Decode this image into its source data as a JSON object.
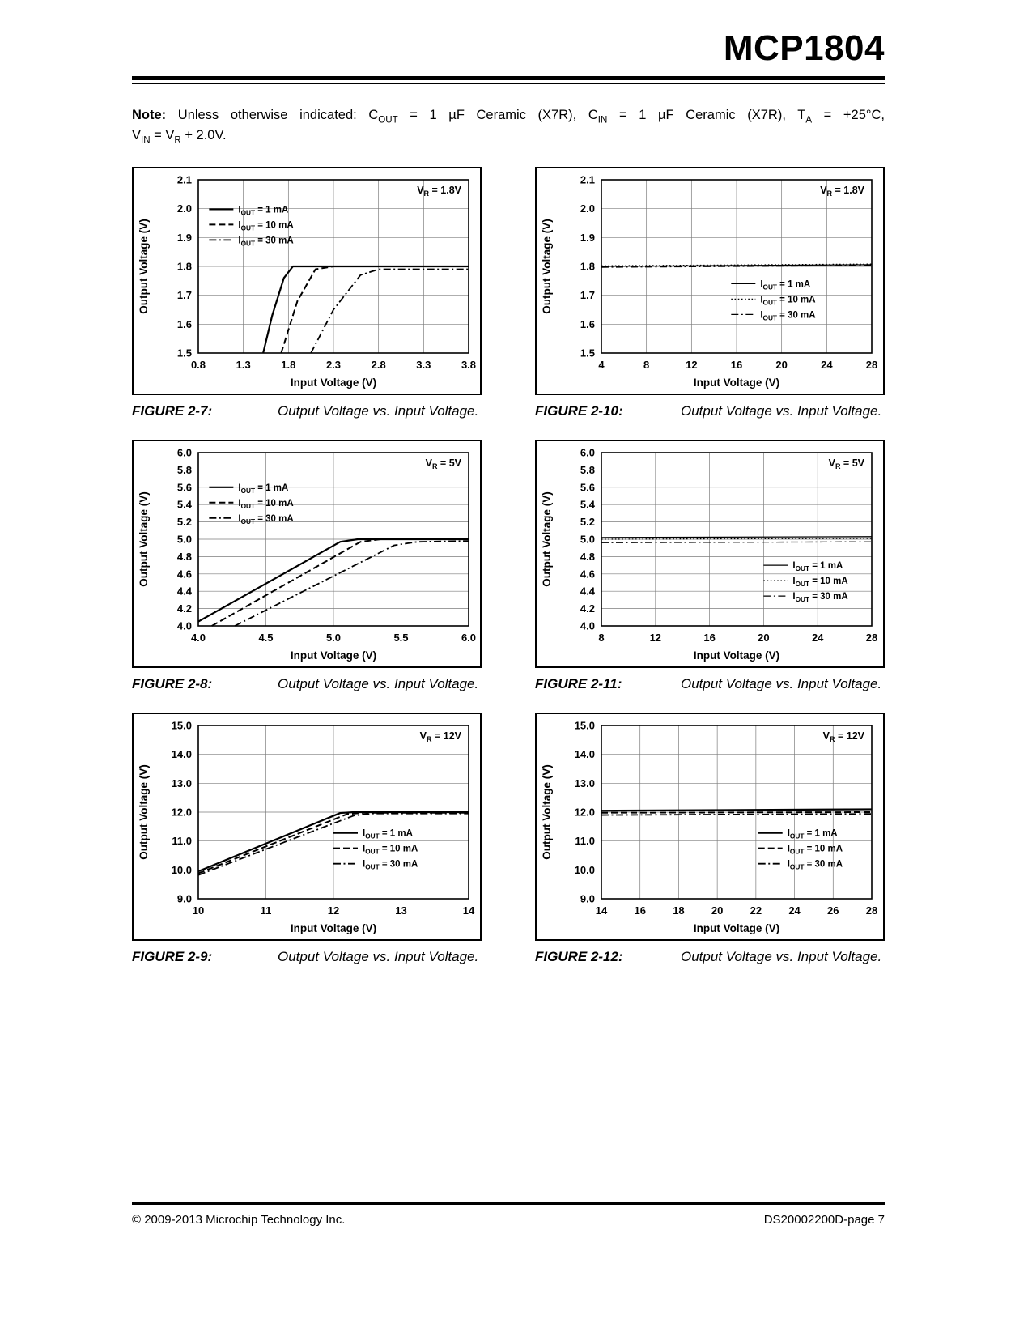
{
  "page": {
    "title": "MCP1804",
    "note": {
      "label": "Note:",
      "line1": "Unless otherwise indicated: C~OUT~ = 1 µF Ceramic (X7R), C~IN~ = 1 µF Ceramic (X7R), T~A~ = +25°C,",
      "line2": "V~IN~ = V~R~ + 2.0V."
    },
    "footer": {
      "left": "© 2009-2013 Microchip Technology Inc.",
      "right": "DS20002200D-page 7"
    }
  },
  "figures": [
    {
      "label": "FIGURE 2-7:",
      "caption": "Output Voltage vs. Input Voltage."
    },
    {
      "label": "FIGURE 2-10:",
      "caption": "Output Voltage vs. Input Voltage."
    },
    {
      "label": "FIGURE 2-8:",
      "caption": "Output Voltage vs. Input Voltage."
    },
    {
      "label": "FIGURE 2-11:",
      "caption": "Output Voltage vs. Input Voltage."
    },
    {
      "label": "FIGURE 2-9:",
      "caption": "Output Voltage vs. Input Voltage."
    },
    {
      "label": "FIGURE 2-12:",
      "caption": "Output Voltage vs. Input Voltage."
    }
  ],
  "chart_data": [
    {
      "figure": "2-7",
      "type": "line",
      "annotation": "V~R~ = 1.8V",
      "xlabel": "Input Voltage (V)",
      "ylabel": "Output Voltage (V)",
      "xlim": [
        0.8,
        3.8
      ],
      "ylim": [
        1.5,
        2.1
      ],
      "xticks": [
        0.8,
        1.3,
        1.8,
        2.3,
        2.8,
        3.3,
        3.8
      ],
      "xtick_labels": [
        "0.8",
        "1.3",
        "1.8",
        "2.3",
        "2.8",
        "3.3",
        "3.8"
      ],
      "yticks": [
        1.5,
        1.6,
        1.7,
        1.8,
        1.9,
        2.0,
        2.1
      ],
      "ytick_labels": [
        "1.5",
        "1.6",
        "1.7",
        "1.8",
        "1.9",
        "2.0",
        "2.1"
      ],
      "grid": true,
      "legend": {
        "x": 0.04,
        "y": 0.17
      },
      "series": [
        {
          "name": "I~OUT~ = 1 mA",
          "dash": "solid",
          "width": 2.2,
          "points": [
            [
              1.52,
              1.5
            ],
            [
              1.62,
              1.63
            ],
            [
              1.75,
              1.76
            ],
            [
              1.85,
              1.8
            ],
            [
              3.8,
              1.8
            ]
          ]
        },
        {
          "name": "I~OUT~ = 10 mA",
          "dash": "dashed",
          "width": 2.0,
          "points": [
            [
              1.72,
              1.5
            ],
            [
              1.9,
              1.68
            ],
            [
              2.1,
              1.79
            ],
            [
              2.3,
              1.8
            ],
            [
              3.8,
              1.8
            ]
          ]
        },
        {
          "name": "I~OUT~ = 30 mA",
          "dash": "dashdot",
          "width": 1.8,
          "points": [
            [
              2.05,
              1.5
            ],
            [
              2.3,
              1.65
            ],
            [
              2.6,
              1.77
            ],
            [
              2.8,
              1.79
            ],
            [
              3.8,
              1.79
            ]
          ]
        }
      ]
    },
    {
      "figure": "2-10",
      "type": "line",
      "annotation": "V~R~ = 1.8V",
      "xlabel": "Input Voltage (V)",
      "ylabel": "Output Voltage (V)",
      "xlim": [
        4,
        28
      ],
      "ylim": [
        1.5,
        2.1
      ],
      "xticks": [
        4,
        8,
        12,
        16,
        20,
        24,
        28
      ],
      "xtick_labels": [
        "4",
        "8",
        "12",
        "16",
        "20",
        "24",
        "28"
      ],
      "yticks": [
        1.5,
        1.6,
        1.7,
        1.8,
        1.9,
        2.0,
        2.1
      ],
      "ytick_labels": [
        "1.5",
        "1.6",
        "1.7",
        "1.8",
        "1.9",
        "2.0",
        "2.1"
      ],
      "grid": true,
      "legend": {
        "x": 0.48,
        "y": 0.6
      },
      "series": [
        {
          "name": "I~OUT~ = 1 mA",
          "dash": "solid",
          "width": 1.3,
          "points": [
            [
              4,
              1.8
            ],
            [
              28,
              1.806
            ]
          ]
        },
        {
          "name": "I~OUT~ = 10 mA",
          "dash": "dotted",
          "width": 1.3,
          "points": [
            [
              4,
              1.802
            ],
            [
              28,
              1.808
            ]
          ]
        },
        {
          "name": "I~OUT~ = 30 mA",
          "dash": "dashdot",
          "width": 1.3,
          "points": [
            [
              4,
              1.797
            ],
            [
              28,
              1.803
            ]
          ]
        }
      ]
    },
    {
      "figure": "2-8",
      "type": "line",
      "annotation": "V~R~ = 5V",
      "xlabel": "Input Voltage (V)",
      "ylabel": "Output Voltage (V)",
      "xlim": [
        4.0,
        6.0
      ],
      "ylim": [
        4.0,
        6.0
      ],
      "xticks": [
        4.0,
        4.5,
        5.0,
        5.5,
        6.0
      ],
      "xtick_labels": [
        "4.0",
        "4.5",
        "5.0",
        "5.5",
        "6.0"
      ],
      "yticks": [
        4.0,
        4.2,
        4.4,
        4.6,
        4.8,
        5.0,
        5.2,
        5.4,
        5.6,
        5.8,
        6.0
      ],
      "ytick_labels": [
        "4.0",
        "4.2",
        "4.4",
        "4.6",
        "4.8",
        "5.0",
        "5.2",
        "5.4",
        "5.6",
        "5.8",
        "6.0"
      ],
      "grid": true,
      "legend": {
        "x": 0.04,
        "y": 0.2
      },
      "series": [
        {
          "name": "I~OUT~ = 1 mA",
          "dash": "solid",
          "width": 2.2,
          "points": [
            [
              4.0,
              4.05
            ],
            [
              5.05,
              4.97
            ],
            [
              5.18,
              5.0
            ],
            [
              6.0,
              5.0
            ]
          ]
        },
        {
          "name": "I~OUT~ = 10 mA",
          "dash": "dashed",
          "width": 2.0,
          "points": [
            [
              4.1,
              4.0
            ],
            [
              5.2,
              4.97
            ],
            [
              5.35,
              5.0
            ],
            [
              6.0,
              5.0
            ]
          ]
        },
        {
          "name": "I~OUT~ = 30 mA",
          "dash": "dashdot",
          "width": 1.8,
          "points": [
            [
              4.27,
              4.0
            ],
            [
              5.45,
              4.93
            ],
            [
              5.62,
              4.97
            ],
            [
              6.0,
              4.98
            ]
          ]
        }
      ]
    },
    {
      "figure": "2-11",
      "type": "line",
      "annotation": "V~R~ = 5V",
      "xlabel": "Input Voltage (V)",
      "ylabel": "Output Voltage (V)",
      "xlim": [
        8,
        28
      ],
      "ylim": [
        4.0,
        6.0
      ],
      "xticks": [
        8,
        12,
        16,
        20,
        24,
        28
      ],
      "xtick_labels": [
        "8",
        "12",
        "16",
        "20",
        "24",
        "28"
      ],
      "yticks": [
        4.0,
        4.2,
        4.4,
        4.6,
        4.8,
        5.0,
        5.2,
        5.4,
        5.6,
        5.8,
        6.0
      ],
      "ytick_labels": [
        "4.0",
        "4.2",
        "4.4",
        "4.6",
        "4.8",
        "5.0",
        "5.2",
        "5.4",
        "5.6",
        "5.8",
        "6.0"
      ],
      "grid": true,
      "legend": {
        "x": 0.6,
        "y": 0.65
      },
      "series": [
        {
          "name": "I~OUT~ = 1 mA",
          "dash": "solid",
          "width": 1.3,
          "points": [
            [
              8,
              5.02
            ],
            [
              28,
              5.03
            ]
          ]
        },
        {
          "name": "I~OUT~ = 10 mA",
          "dash": "dotted",
          "width": 1.3,
          "points": [
            [
              8,
              5.0
            ],
            [
              28,
              5.01
            ]
          ]
        },
        {
          "name": "I~OUT~ = 30 mA",
          "dash": "dashdot",
          "width": 1.3,
          "points": [
            [
              8,
              4.96
            ],
            [
              28,
              4.97
            ]
          ]
        }
      ]
    },
    {
      "figure": "2-9",
      "type": "line",
      "annotation": "V~R~ = 12V",
      "xlabel": "Input Voltage (V)",
      "ylabel": "Output Voltage (V)",
      "xlim": [
        10,
        14
      ],
      "ylim": [
        9.0,
        15.0
      ],
      "xticks": [
        10,
        11,
        12,
        13,
        14
      ],
      "xtick_labels": [
        "10",
        "11",
        "12",
        "13",
        "14"
      ],
      "yticks": [
        9,
        10,
        11,
        12,
        13,
        14,
        15
      ],
      "ytick_labels": [
        "9.0",
        "10.0",
        "11.0",
        "12.0",
        "13.0",
        "14.0",
        "15.0"
      ],
      "grid": true,
      "legend": {
        "x": 0.5,
        "y": 0.62
      },
      "series": [
        {
          "name": "I~OUT~ = 1 mA",
          "dash": "solid",
          "width": 2.2,
          "points": [
            [
              10,
              9.95
            ],
            [
              12.1,
              11.97
            ],
            [
              12.3,
              12.0
            ],
            [
              14,
              12.0
            ]
          ]
        },
        {
          "name": "I~OUT~ = 10 mA",
          "dash": "dashed",
          "width": 2.0,
          "points": [
            [
              10,
              9.88
            ],
            [
              12.2,
              11.93
            ],
            [
              12.45,
              11.98
            ],
            [
              14,
              11.98
            ]
          ]
        },
        {
          "name": "I~OUT~ = 30 mA",
          "dash": "dashdot",
          "width": 1.8,
          "points": [
            [
              10,
              9.82
            ],
            [
              12.3,
              11.88
            ],
            [
              12.55,
              11.95
            ],
            [
              14,
              11.95
            ]
          ]
        }
      ]
    },
    {
      "figure": "2-12",
      "type": "line",
      "annotation": "V~R~ = 12V",
      "xlabel": "Input Voltage (V)",
      "ylabel": "Output Voltage (V)",
      "xlim": [
        14,
        28
      ],
      "ylim": [
        9.0,
        15.0
      ],
      "xticks": [
        14,
        16,
        18,
        20,
        22,
        24,
        26,
        28
      ],
      "xtick_labels": [
        "14",
        "16",
        "18",
        "20",
        "22",
        "24",
        "26",
        "28"
      ],
      "yticks": [
        9,
        10,
        11,
        12,
        13,
        14,
        15
      ],
      "ytick_labels": [
        "9.0",
        "10.0",
        "11.0",
        "12.0",
        "13.0",
        "14.0",
        "15.0"
      ],
      "grid": true,
      "legend": {
        "x": 0.58,
        "y": 0.62
      },
      "series": [
        {
          "name": "I~OUT~ = 1 mA",
          "dash": "solid",
          "width": 2.2,
          "points": [
            [
              14,
              12.05
            ],
            [
              28,
              12.1
            ]
          ]
        },
        {
          "name": "I~OUT~ = 10 mA",
          "dash": "dashed",
          "width": 2.0,
          "points": [
            [
              14,
              11.98
            ],
            [
              28,
              12.0
            ]
          ]
        },
        {
          "name": "I~OUT~ = 30 mA",
          "dash": "dashdot",
          "width": 1.8,
          "points": [
            [
              14,
              11.9
            ],
            [
              28,
              11.94
            ]
          ]
        }
      ]
    }
  ]
}
